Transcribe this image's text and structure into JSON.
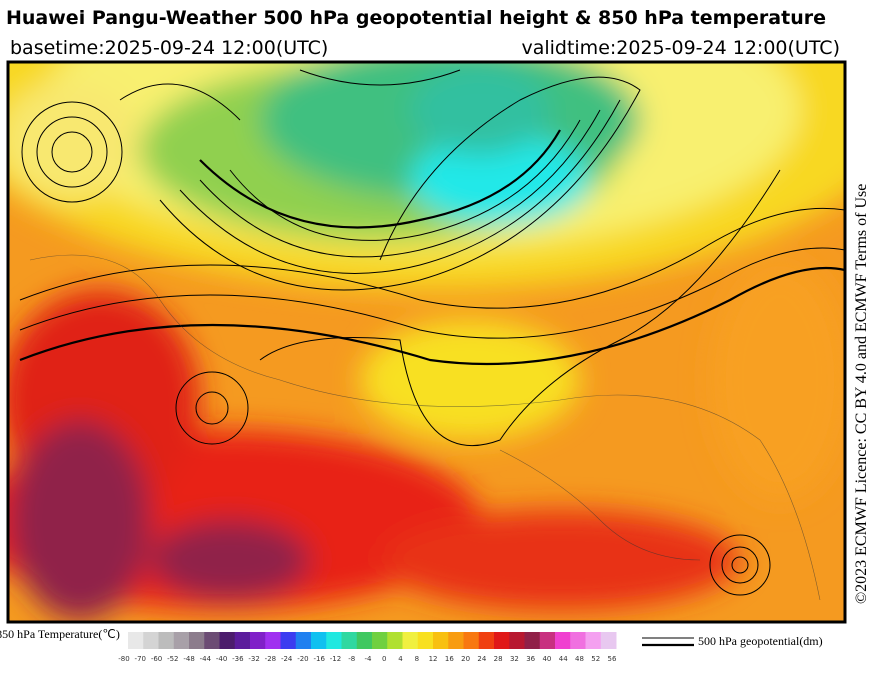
{
  "header": {
    "title": "Huawei Pangu-Weather 500 hPa geopotential height & 850 hPa temperature",
    "basetime": "basetime:2025-09-24 12:00(UTC)",
    "validtime": "validtime:2025-09-24 12:00(UTC)"
  },
  "licence": "©2023 ECMWF Licence: CC BY 4.0 and ECMWF Terms of Use",
  "colorbar": {
    "title": "850 hPa Temperature(℃)",
    "ticks": [
      -80,
      -70,
      -60,
      -52,
      -48,
      -44,
      -40,
      -36,
      -32,
      -28,
      -24,
      -20,
      -16,
      -12,
      -8,
      -4,
      0,
      4,
      8,
      12,
      16,
      20,
      24,
      28,
      32,
      36,
      40,
      44,
      48,
      52,
      56
    ],
    "colors": [
      "#e8e8e8",
      "#d4d4d4",
      "#bcbcbc",
      "#a8a0a8",
      "#8c7c8c",
      "#6c4c74",
      "#4c1c6c",
      "#5c1c9c",
      "#8020c8",
      "#a030f0",
      "#3c3cf0",
      "#2080f0",
      "#10c0f0",
      "#20e8e0",
      "#30d8a0",
      "#40c860",
      "#70d040",
      "#b0e030",
      "#f0f040",
      "#f8e020",
      "#f8c010",
      "#f89c10",
      "#f87810",
      "#f04010",
      "#e01818",
      "#b81830",
      "#902048",
      "#c83080",
      "#f040d0",
      "#f070e0",
      "#f4a0f0",
      "#e8c8f0"
    ]
  },
  "legend": {
    "label": "500 hPa geopotential(dm)"
  }
}
